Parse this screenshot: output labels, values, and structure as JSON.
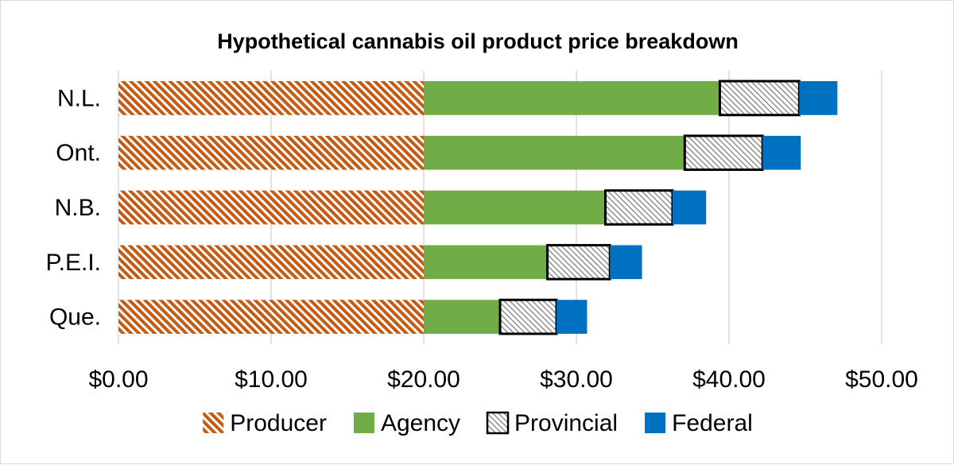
{
  "chart_data": {
    "type": "bar",
    "orientation": "horizontal",
    "stacked": true,
    "title": "Hypothetical cannabis oil product price breakdown",
    "categories": [
      "N.L.",
      "Ont.",
      "N.B.",
      "P.E.I.",
      "Que."
    ],
    "series": [
      {
        "name": "Producer",
        "values": [
          20.0,
          20.0,
          20.0,
          20.0,
          20.0
        ],
        "color": "#c55a11",
        "pattern": "diagonal-hatch"
      },
      {
        "name": "Agency",
        "values": [
          19.4,
          17.1,
          11.9,
          8.1,
          5.0
        ],
        "color": "#70ad47",
        "pattern": "solid"
      },
      {
        "name": "Provincial",
        "values": [
          5.2,
          5.1,
          4.4,
          4.1,
          3.7
        ],
        "color": "#ffffff",
        "pattern": "fine-hatch-outlined"
      },
      {
        "name": "Federal",
        "values": [
          2.5,
          2.5,
          2.2,
          2.1,
          2.0
        ],
        "color": "#0070c0",
        "pattern": "solid"
      }
    ],
    "xlim": [
      0,
      50
    ],
    "xticks": [
      "$0.00",
      "$10.00",
      "$20.00",
      "$30.00",
      "$40.00",
      "$50.00"
    ],
    "grid": "vertical",
    "legend": "bottom"
  }
}
